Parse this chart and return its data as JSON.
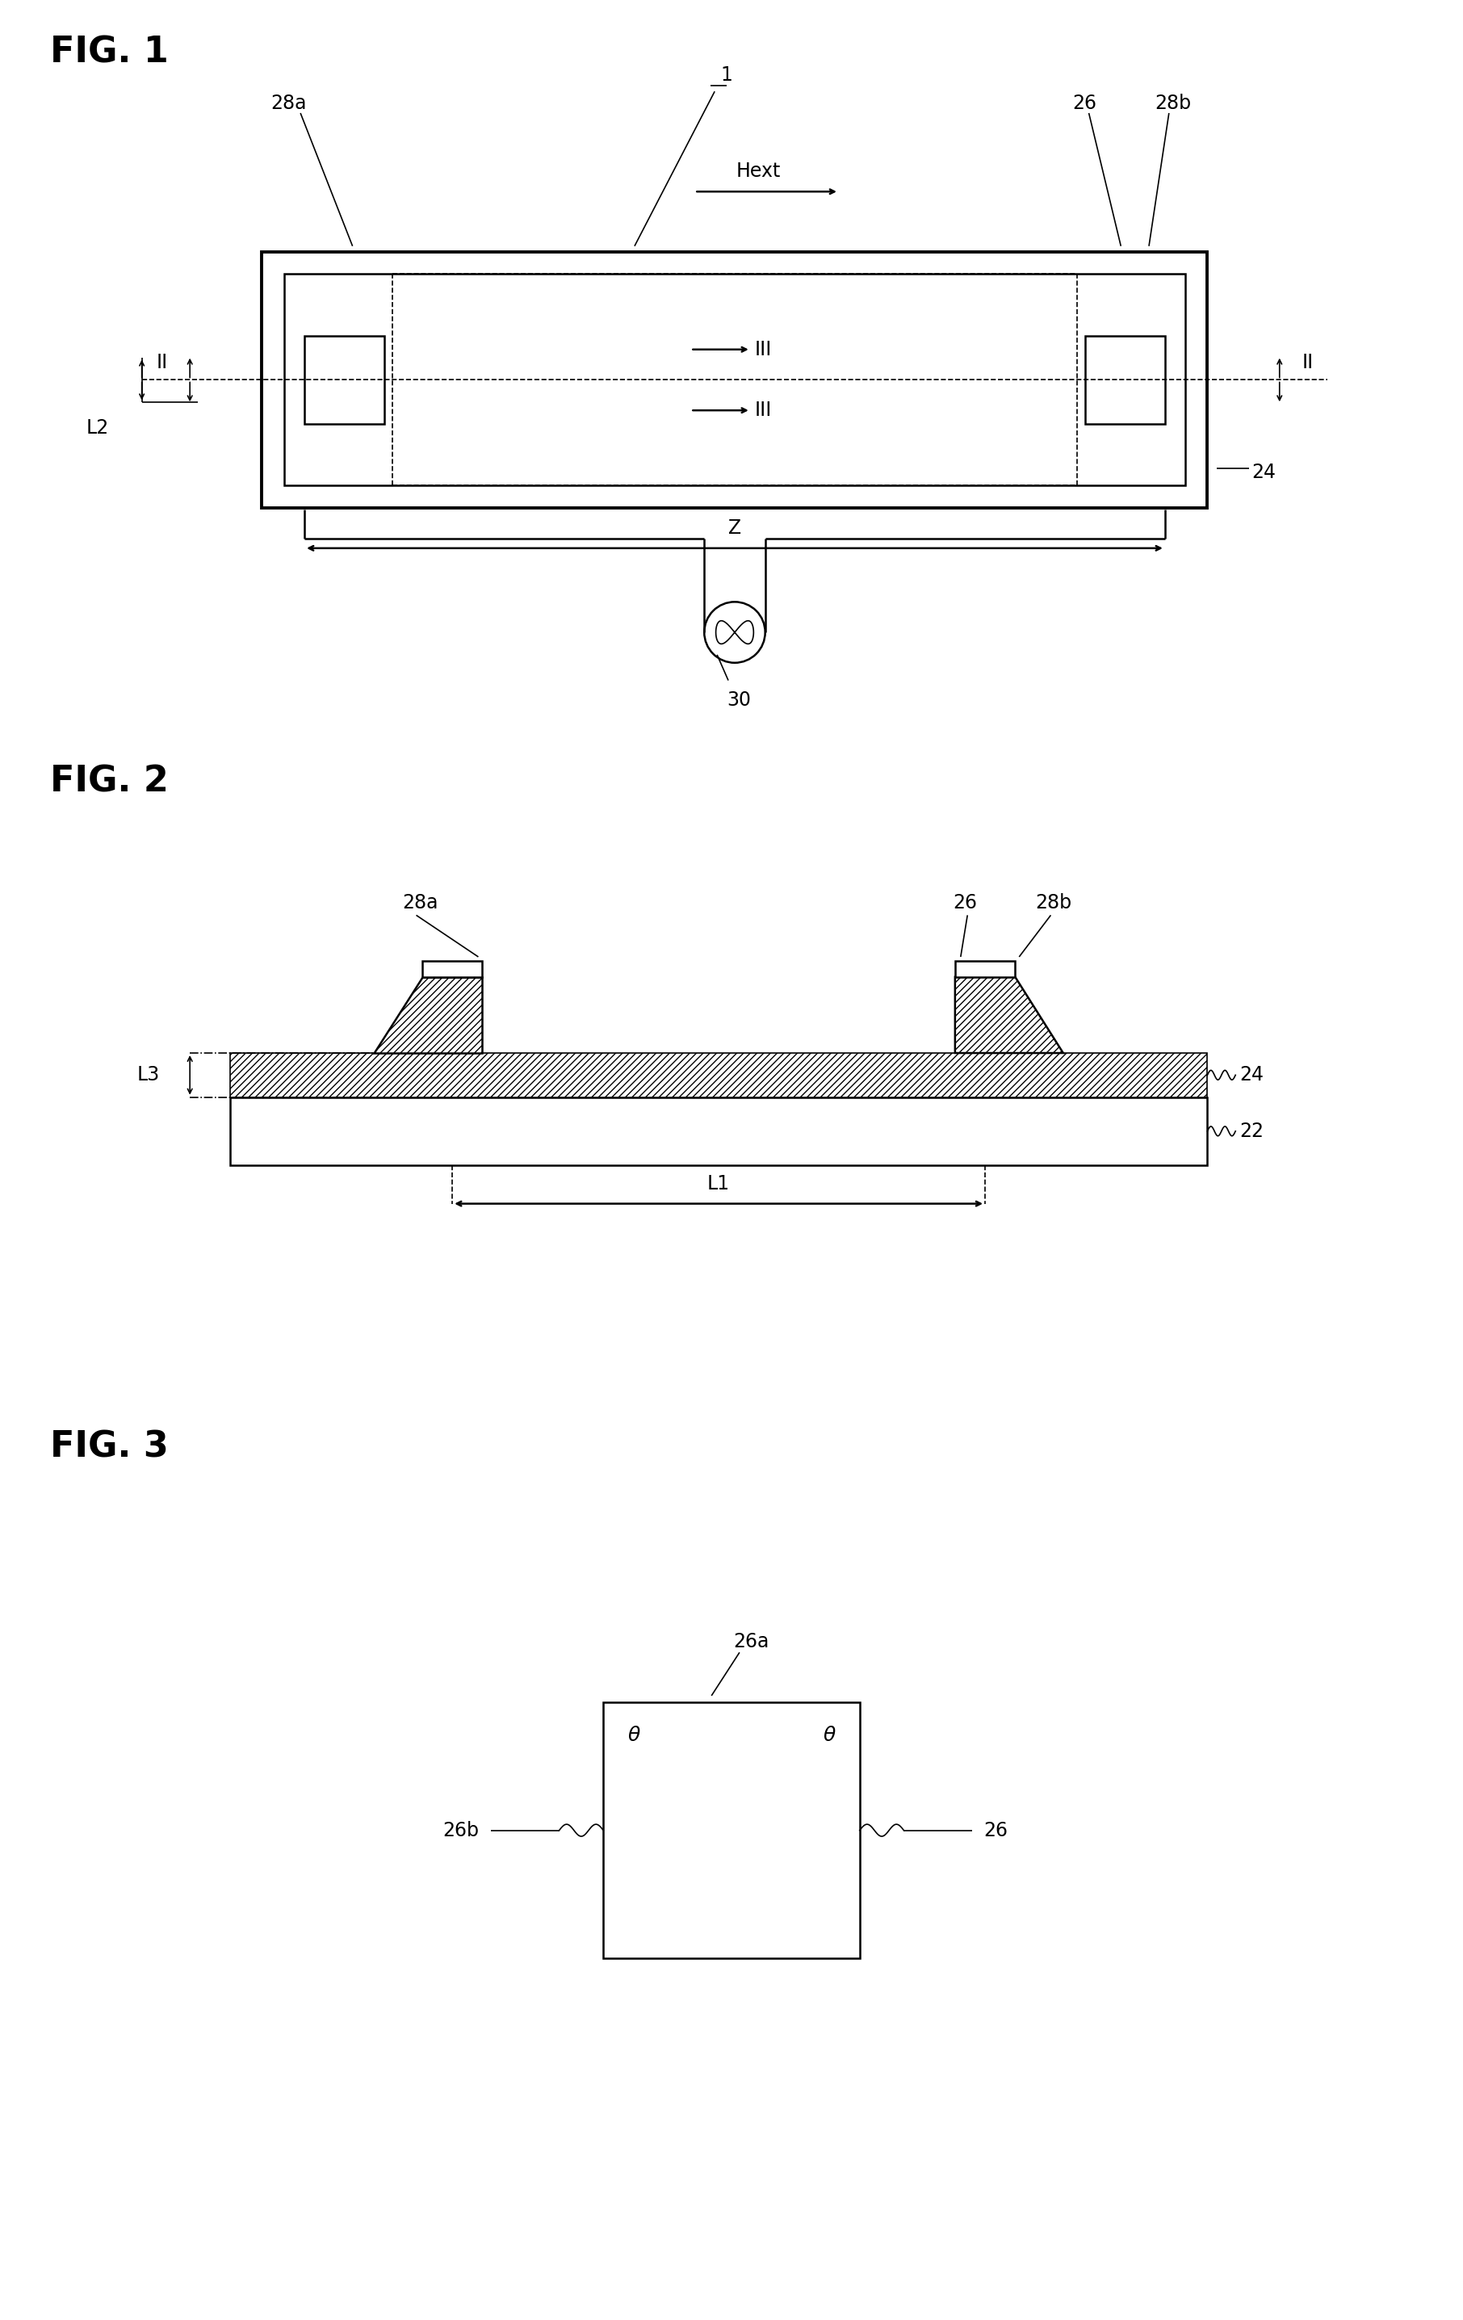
{
  "bg_color": "#ffffff",
  "line_color": "#000000",
  "fig1_title": "FIG. 1",
  "fig2_title": "FIG. 2",
  "fig3_title": "FIG. 3",
  "fig_title_fontsize": 32,
  "annotation_fontsize": 17
}
